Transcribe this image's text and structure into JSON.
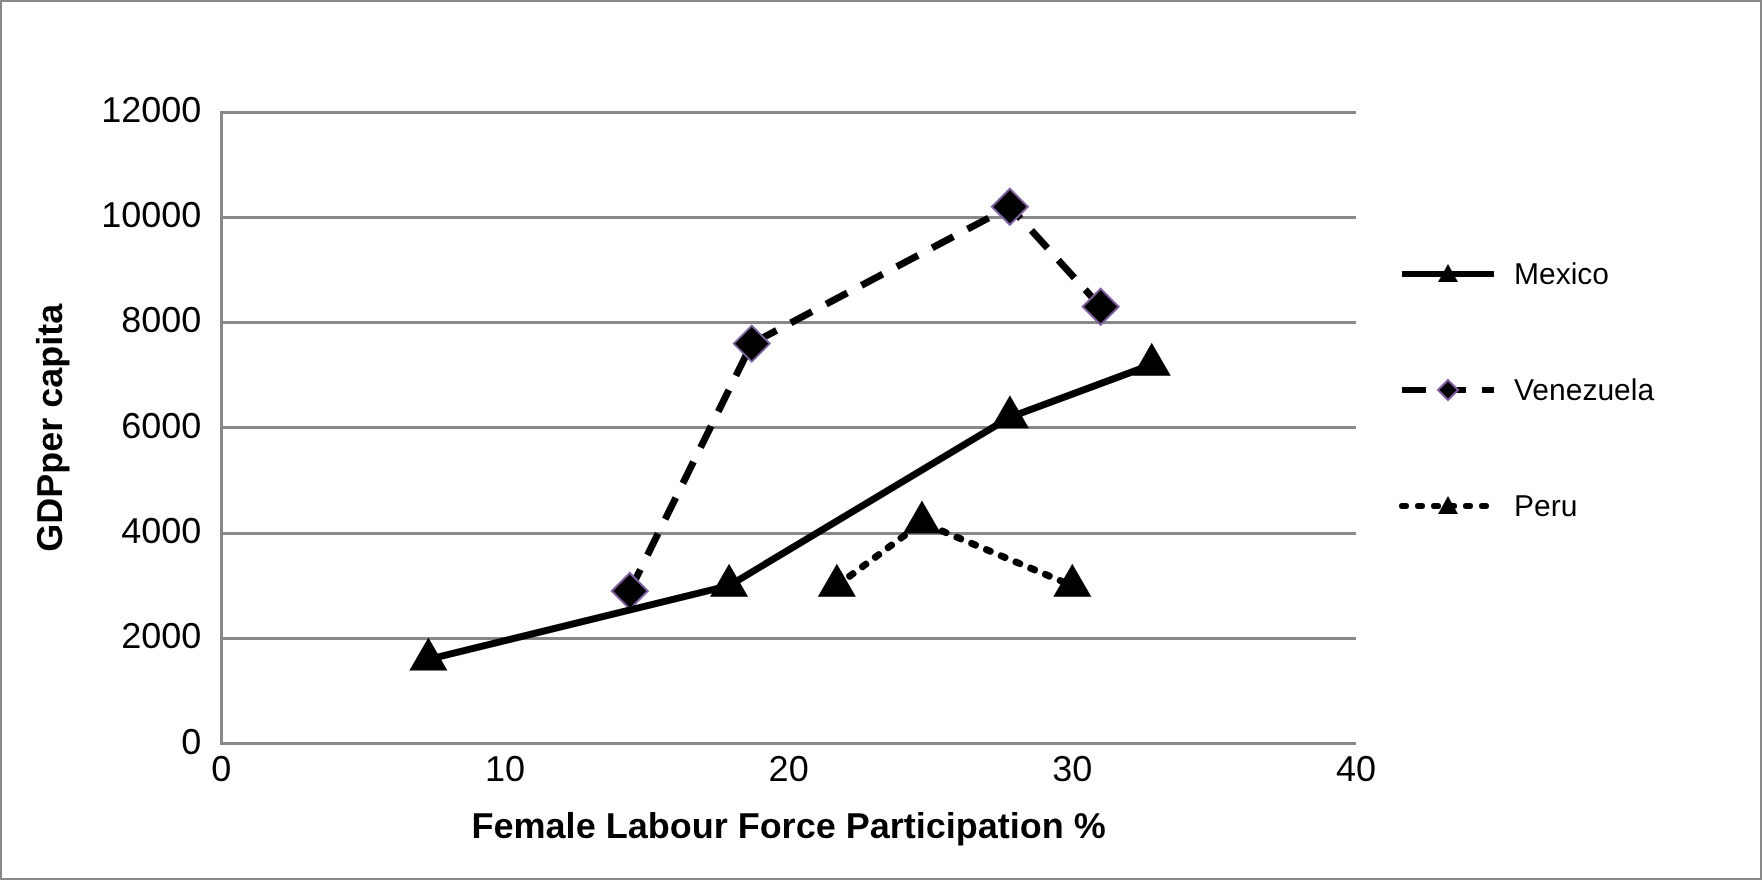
{
  "chart_data": {
    "type": "line",
    "xlabel": "Female Labour Force Participation %",
    "ylabel": "GDPper capita",
    "xlim": [
      0,
      40
    ],
    "xticks": [
      0,
      10,
      20,
      30,
      40
    ],
    "ylim": [
      0,
      12000
    ],
    "yticks": [
      0,
      2000,
      4000,
      6000,
      8000,
      10000,
      12000
    ],
    "grid": "y",
    "legend": "right",
    "series": [
      {
        "name": "Mexico",
        "color": "#000000",
        "marker": "triangle",
        "line_style": "solid",
        "x": [
          7.3,
          17.9,
          27.8,
          32.8
        ],
        "values": [
          1600,
          3000,
          6200,
          7200
        ]
      },
      {
        "name": "Venezuela",
        "color": "#000000",
        "marker": "diamond",
        "line_style": "dashed",
        "x": [
          14.4,
          18.7,
          27.8,
          31.0
        ],
        "values": [
          2900,
          7600,
          10200,
          8300
        ]
      },
      {
        "name": "Peru",
        "color": "#000000",
        "marker": "triangle",
        "line_style": "dotted",
        "x": [
          21.7,
          24.7,
          30.0
        ],
        "values": [
          3000,
          4200,
          3000
        ]
      }
    ]
  }
}
